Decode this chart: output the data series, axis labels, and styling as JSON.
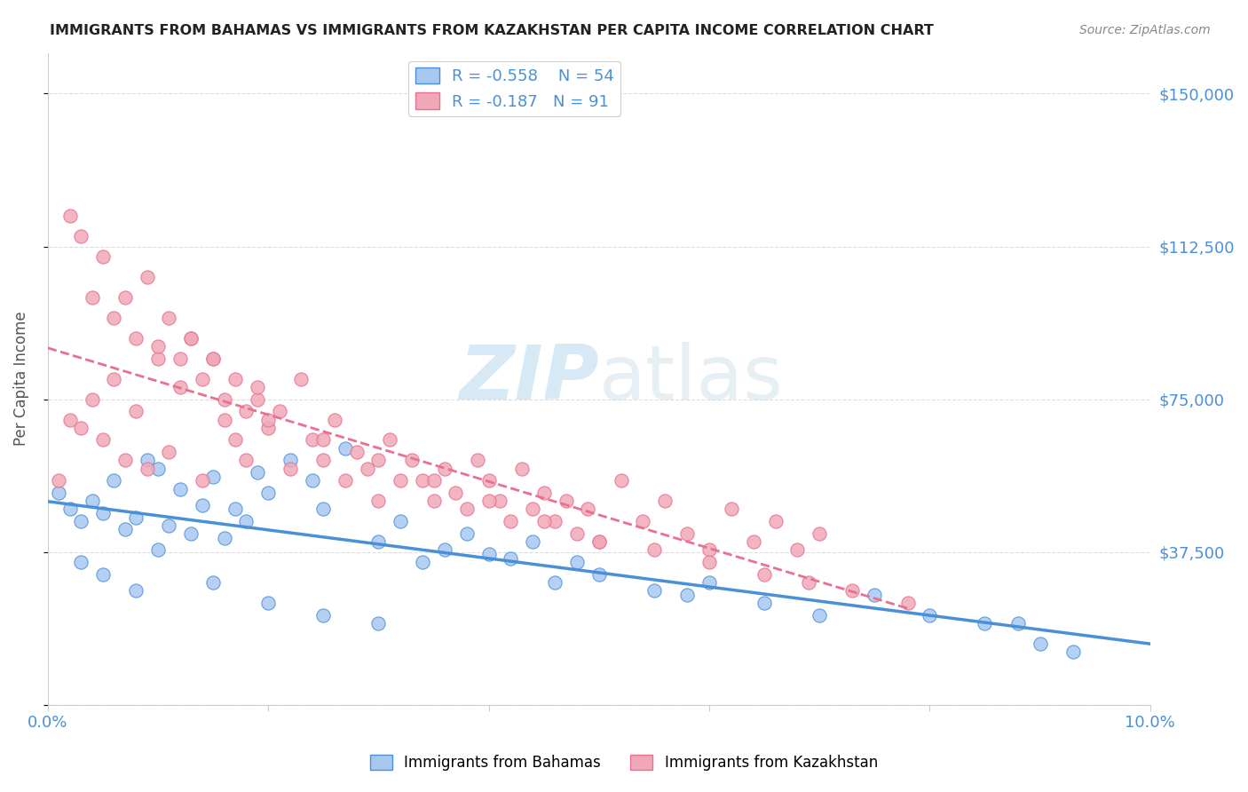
{
  "title": "IMMIGRANTS FROM BAHAMAS VS IMMIGRANTS FROM KAZAKHSTAN PER CAPITA INCOME CORRELATION CHART",
  "source": "Source: ZipAtlas.com",
  "ylabel": "Per Capita Income",
  "yticks": [
    0,
    37500,
    75000,
    112500,
    150000
  ],
  "ytick_labels": [
    "",
    "$37,500",
    "$75,000",
    "$112,500",
    "$150,000"
  ],
  "xlim": [
    0.0,
    0.1
  ],
  "ylim": [
    0,
    160000
  ],
  "legend_r_bahamas": "-0.558",
  "legend_n_bahamas": "54",
  "legend_r_kazakhstan": "-0.187",
  "legend_n_kazakhstan": "91",
  "color_bahamas": "#a8c8f0",
  "color_kazakhstan": "#f0a8b8",
  "color_line_bahamas": "#4a90d9",
  "color_line_kazakhstan": "#e87090",
  "color_text_blue": "#4a90d9",
  "color_axis": "#cccccc",
  "color_grid": "#dddddd",
  "watermark_zip": "ZIP",
  "watermark_atlas": "atlas",
  "bahamas_x": [
    0.001,
    0.002,
    0.003,
    0.004,
    0.005,
    0.006,
    0.007,
    0.008,
    0.009,
    0.01,
    0.011,
    0.012,
    0.013,
    0.014,
    0.015,
    0.016,
    0.017,
    0.018,
    0.019,
    0.02,
    0.022,
    0.024,
    0.025,
    0.027,
    0.03,
    0.032,
    0.034,
    0.036,
    0.038,
    0.04,
    0.042,
    0.044,
    0.046,
    0.048,
    0.05,
    0.055,
    0.058,
    0.06,
    0.065,
    0.07,
    0.075,
    0.08,
    0.085,
    0.09,
    0.003,
    0.005,
    0.008,
    0.01,
    0.015,
    0.02,
    0.025,
    0.03,
    0.088,
    0.093
  ],
  "bahamas_y": [
    52000,
    48000,
    45000,
    50000,
    47000,
    55000,
    43000,
    46000,
    60000,
    58000,
    44000,
    53000,
    42000,
    49000,
    56000,
    41000,
    48000,
    45000,
    57000,
    52000,
    60000,
    55000,
    48000,
    63000,
    40000,
    45000,
    35000,
    38000,
    42000,
    37000,
    36000,
    40000,
    30000,
    35000,
    32000,
    28000,
    27000,
    30000,
    25000,
    22000,
    27000,
    22000,
    20000,
    15000,
    35000,
    32000,
    28000,
    38000,
    30000,
    25000,
    22000,
    20000,
    20000,
    13000
  ],
  "kazakhstan_x": [
    0.001,
    0.002,
    0.003,
    0.004,
    0.005,
    0.006,
    0.007,
    0.008,
    0.009,
    0.01,
    0.011,
    0.012,
    0.013,
    0.014,
    0.015,
    0.016,
    0.017,
    0.018,
    0.019,
    0.02,
    0.021,
    0.022,
    0.023,
    0.024,
    0.025,
    0.026,
    0.027,
    0.028,
    0.029,
    0.03,
    0.031,
    0.032,
    0.033,
    0.034,
    0.035,
    0.036,
    0.037,
    0.038,
    0.039,
    0.04,
    0.041,
    0.042,
    0.043,
    0.044,
    0.045,
    0.046,
    0.047,
    0.048,
    0.049,
    0.05,
    0.052,
    0.054,
    0.056,
    0.058,
    0.06,
    0.062,
    0.064,
    0.066,
    0.068,
    0.07,
    0.002,
    0.003,
    0.004,
    0.005,
    0.006,
    0.007,
    0.008,
    0.009,
    0.01,
    0.011,
    0.012,
    0.013,
    0.014,
    0.015,
    0.016,
    0.017,
    0.018,
    0.019,
    0.02,
    0.025,
    0.03,
    0.035,
    0.04,
    0.045,
    0.05,
    0.055,
    0.06,
    0.065,
    0.069,
    0.073,
    0.078
  ],
  "kazakhstan_y": [
    55000,
    70000,
    68000,
    75000,
    65000,
    80000,
    60000,
    72000,
    58000,
    85000,
    62000,
    78000,
    90000,
    55000,
    85000,
    70000,
    65000,
    60000,
    75000,
    68000,
    72000,
    58000,
    80000,
    65000,
    60000,
    70000,
    55000,
    62000,
    58000,
    50000,
    65000,
    55000,
    60000,
    55000,
    50000,
    58000,
    52000,
    48000,
    60000,
    55000,
    50000,
    45000,
    58000,
    48000,
    52000,
    45000,
    50000,
    42000,
    48000,
    40000,
    55000,
    45000,
    50000,
    42000,
    38000,
    48000,
    40000,
    45000,
    38000,
    42000,
    120000,
    115000,
    100000,
    110000,
    95000,
    100000,
    90000,
    105000,
    88000,
    95000,
    85000,
    90000,
    80000,
    85000,
    75000,
    80000,
    72000,
    78000,
    70000,
    65000,
    60000,
    55000,
    50000,
    45000,
    40000,
    38000,
    35000,
    32000,
    30000,
    28000,
    25000
  ]
}
